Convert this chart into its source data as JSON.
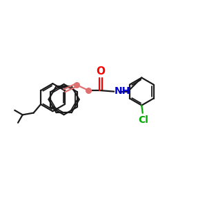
{
  "bg_color": "#ffffff",
  "bond_color": "#1a1a1a",
  "o_color": "#ff0000",
  "n_color": "#0000cc",
  "cl_color": "#00aa00",
  "chain_color": "#e07070",
  "figsize": [
    3.0,
    3.0
  ],
  "dpi": 100,
  "xlim": [
    0,
    12
  ],
  "ylim": [
    1,
    9
  ]
}
